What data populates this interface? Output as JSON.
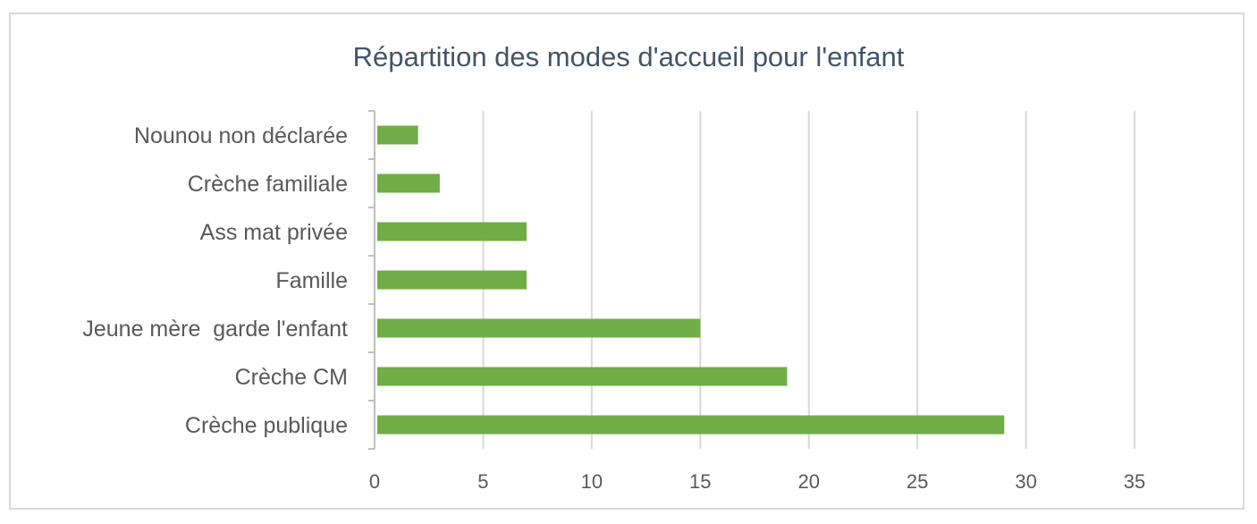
{
  "chart_data": {
    "type": "bar",
    "orientation": "horizontal",
    "title": "Répartition des modes d'accueil pour l'enfant",
    "categories": [
      "Nounou non déclarée",
      "Crèche familiale",
      "Ass mat privée",
      "Famille",
      "Jeune mère  garde l'enfant",
      "Crèche CM",
      "Crèche publique"
    ],
    "values": [
      2,
      3,
      7,
      7,
      15,
      19,
      29
    ],
    "xlabel": "",
    "ylabel": "",
    "xlim": [
      0,
      35
    ],
    "xticks": [
      "0",
      "5",
      "10",
      "15",
      "20",
      "25",
      "30",
      "35"
    ],
    "grid": "vertical",
    "legend": "none",
    "bar_color": "#70ad47",
    "grid_color": "#d9d9d9",
    "axis_color": "#bfbfbf",
    "title_color": "#44546a",
    "label_color": "#595959"
  }
}
